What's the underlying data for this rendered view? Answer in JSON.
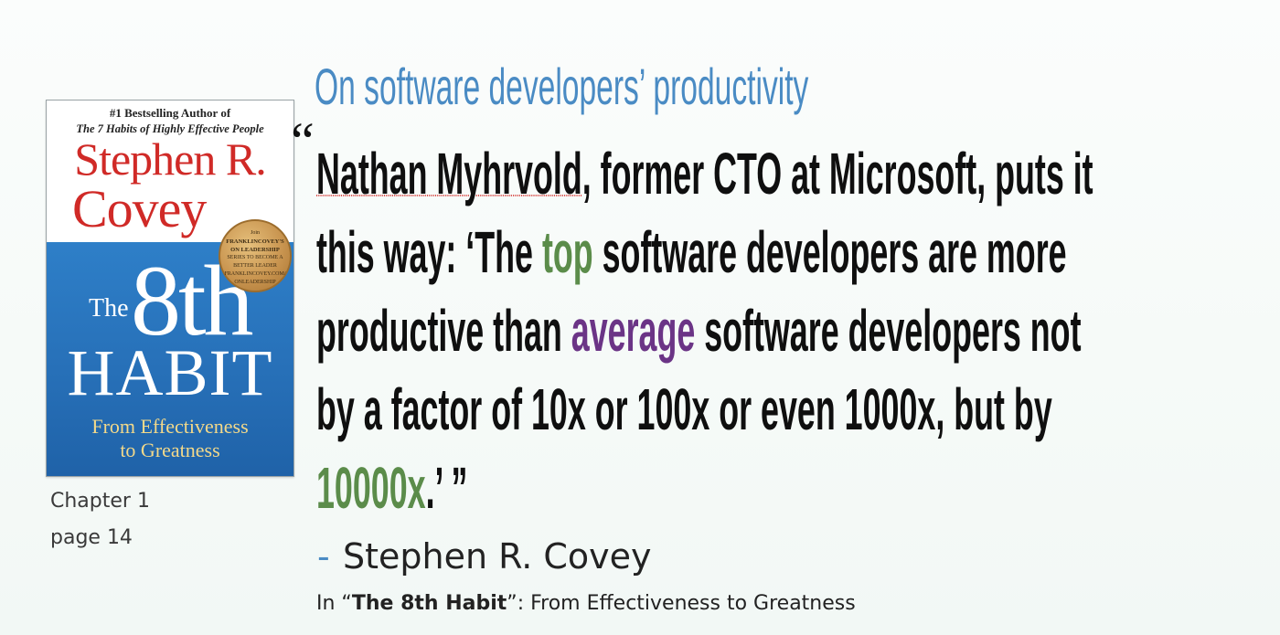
{
  "title": "On software developers’ productivity",
  "book": {
    "bestseller": "#1 Bestselling Author of",
    "habits_line": "The 7 Habits of Highly Effective People",
    "author_first": "Stephen R.",
    "author_last": "Covey",
    "seal": {
      "line1": "Join",
      "line2": "FRANKLINCOVEY'S",
      "line3": "ON LEADERSHIP",
      "line4": "SERIES TO BECOME A",
      "line5": "BETTER LEADER",
      "line6": "FRANKLINCOVEY.COM/",
      "line7": "ONLEADERSHIP"
    },
    "the": "The",
    "eighth": "8th",
    "habit": "HABIT",
    "subtitle_1": "From Effectiveness",
    "subtitle_2": "to Greatness"
  },
  "chapter": "Chapter 1",
  "page": "page 14",
  "quote": {
    "open_mark": "“",
    "line1_name": "Nathan Myhrvold",
    "line1_rest": ", former CTO at Microsoft, puts it",
    "line2_a": "this way: ‘The ",
    "line2_top": "top",
    "line2_b": " software developers are more",
    "line3_a": "productive than ",
    "line3_average": "average",
    "line3_b": " software developers not",
    "line4": "by a factor of 10x or 100x or even 1000x, but by",
    "line5_num": "10000x",
    "line5_end": ".’  ”"
  },
  "attribution": {
    "dash": "-",
    "name": "Stephen R. Covey",
    "source_prefix": "In “",
    "source_title": "The 8th Habit",
    "source_suffix": "”:  From Effectiveness to Greatness"
  },
  "colors": {
    "title_blue": "#4a8bc4",
    "highlight_green": "#5b8c4a",
    "highlight_purple": "#6b3486",
    "cover_red": "#d02a27",
    "cover_blue": "#2e7fc8"
  }
}
